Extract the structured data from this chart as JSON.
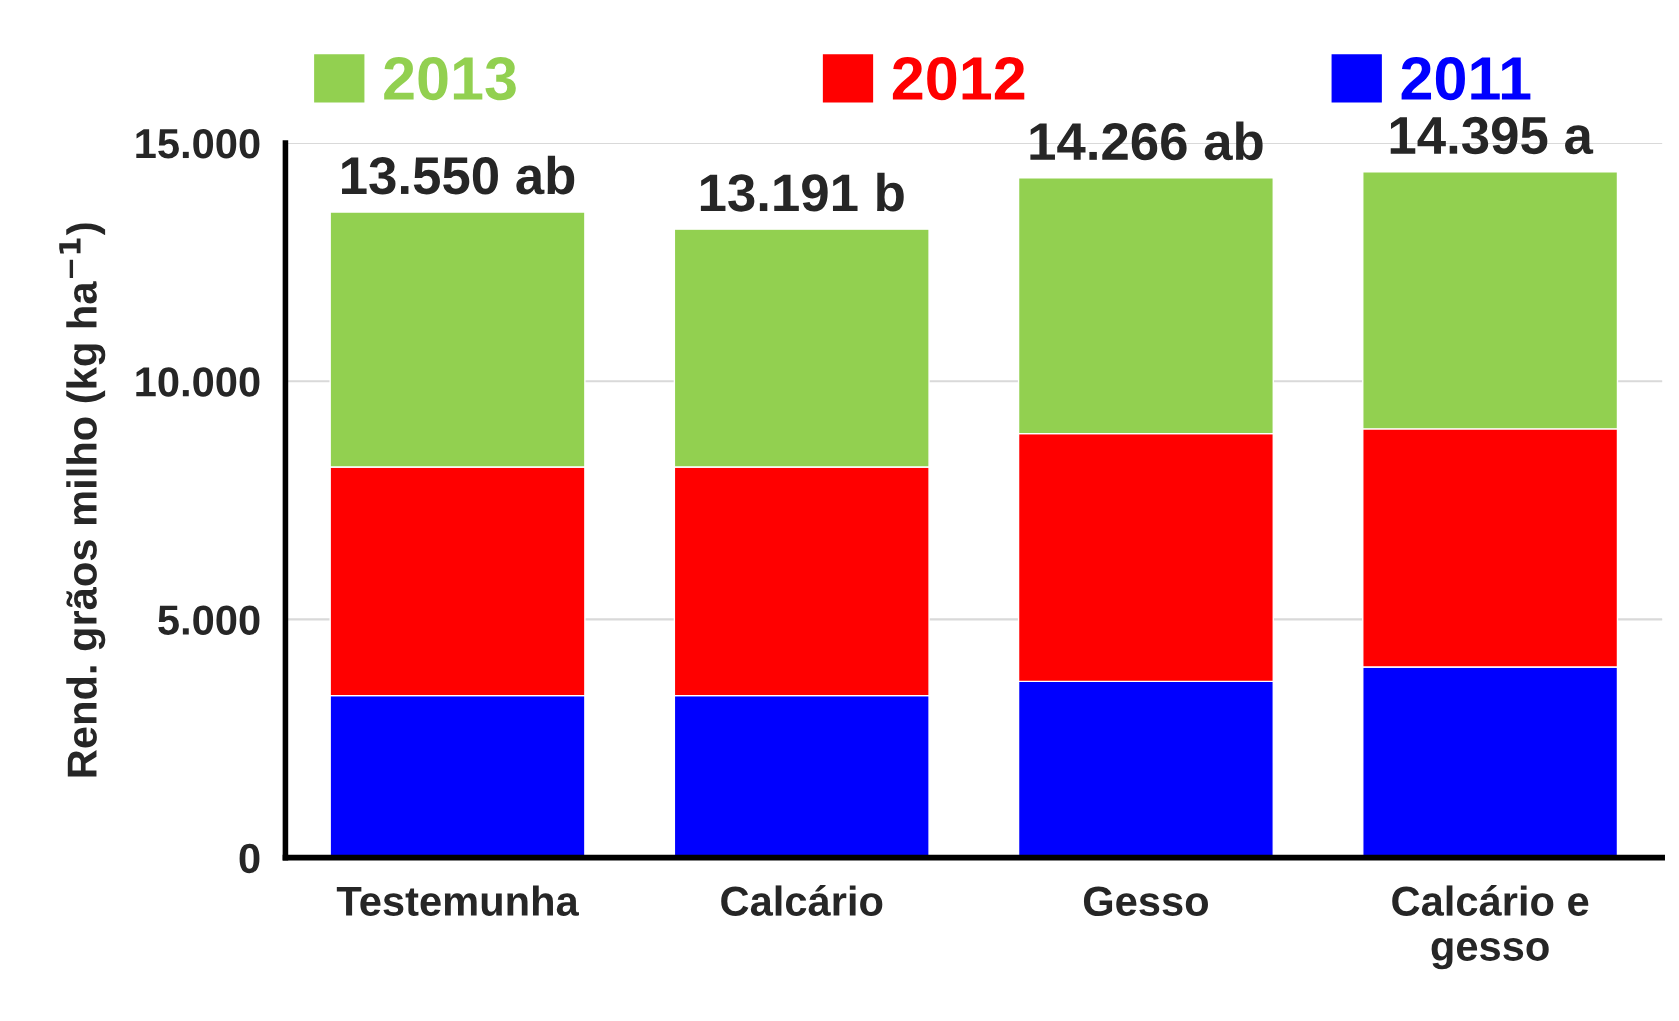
{
  "chart_data": {
    "type": "bar",
    "stacked": true,
    "ylabel": "Rend. grãos milho (kg ha$^{−1}$)",
    "categories": [
      "Testemunha",
      "Calcário",
      "Gesso",
      "Calcário e\ngesso"
    ],
    "series": [
      {
        "name": "2011",
        "color": "#0000ff",
        "values": [
          3400,
          3400,
          3700,
          4000
        ]
      },
      {
        "name": "2012",
        "color": "#ff0000",
        "values": [
          4800,
          4800,
          5200,
          5000
        ]
      },
      {
        "name": "2013",
        "color": "#92d050",
        "values": [
          5350,
          4991,
          5366,
          5395
        ]
      }
    ],
    "totals": [
      "13.550 ab",
      "13.191 b",
      "14.266 ab",
      "14.395 a"
    ],
    "ylim": [
      0,
      15000
    ],
    "yticks": [
      {
        "value": 0,
        "label": "0"
      },
      {
        "value": 5000,
        "label": "5.000"
      },
      {
        "value": 10000,
        "label": "10.000"
      },
      {
        "value": 15000,
        "label": "15.000"
      }
    ],
    "grid": "y",
    "legend": "top"
  }
}
